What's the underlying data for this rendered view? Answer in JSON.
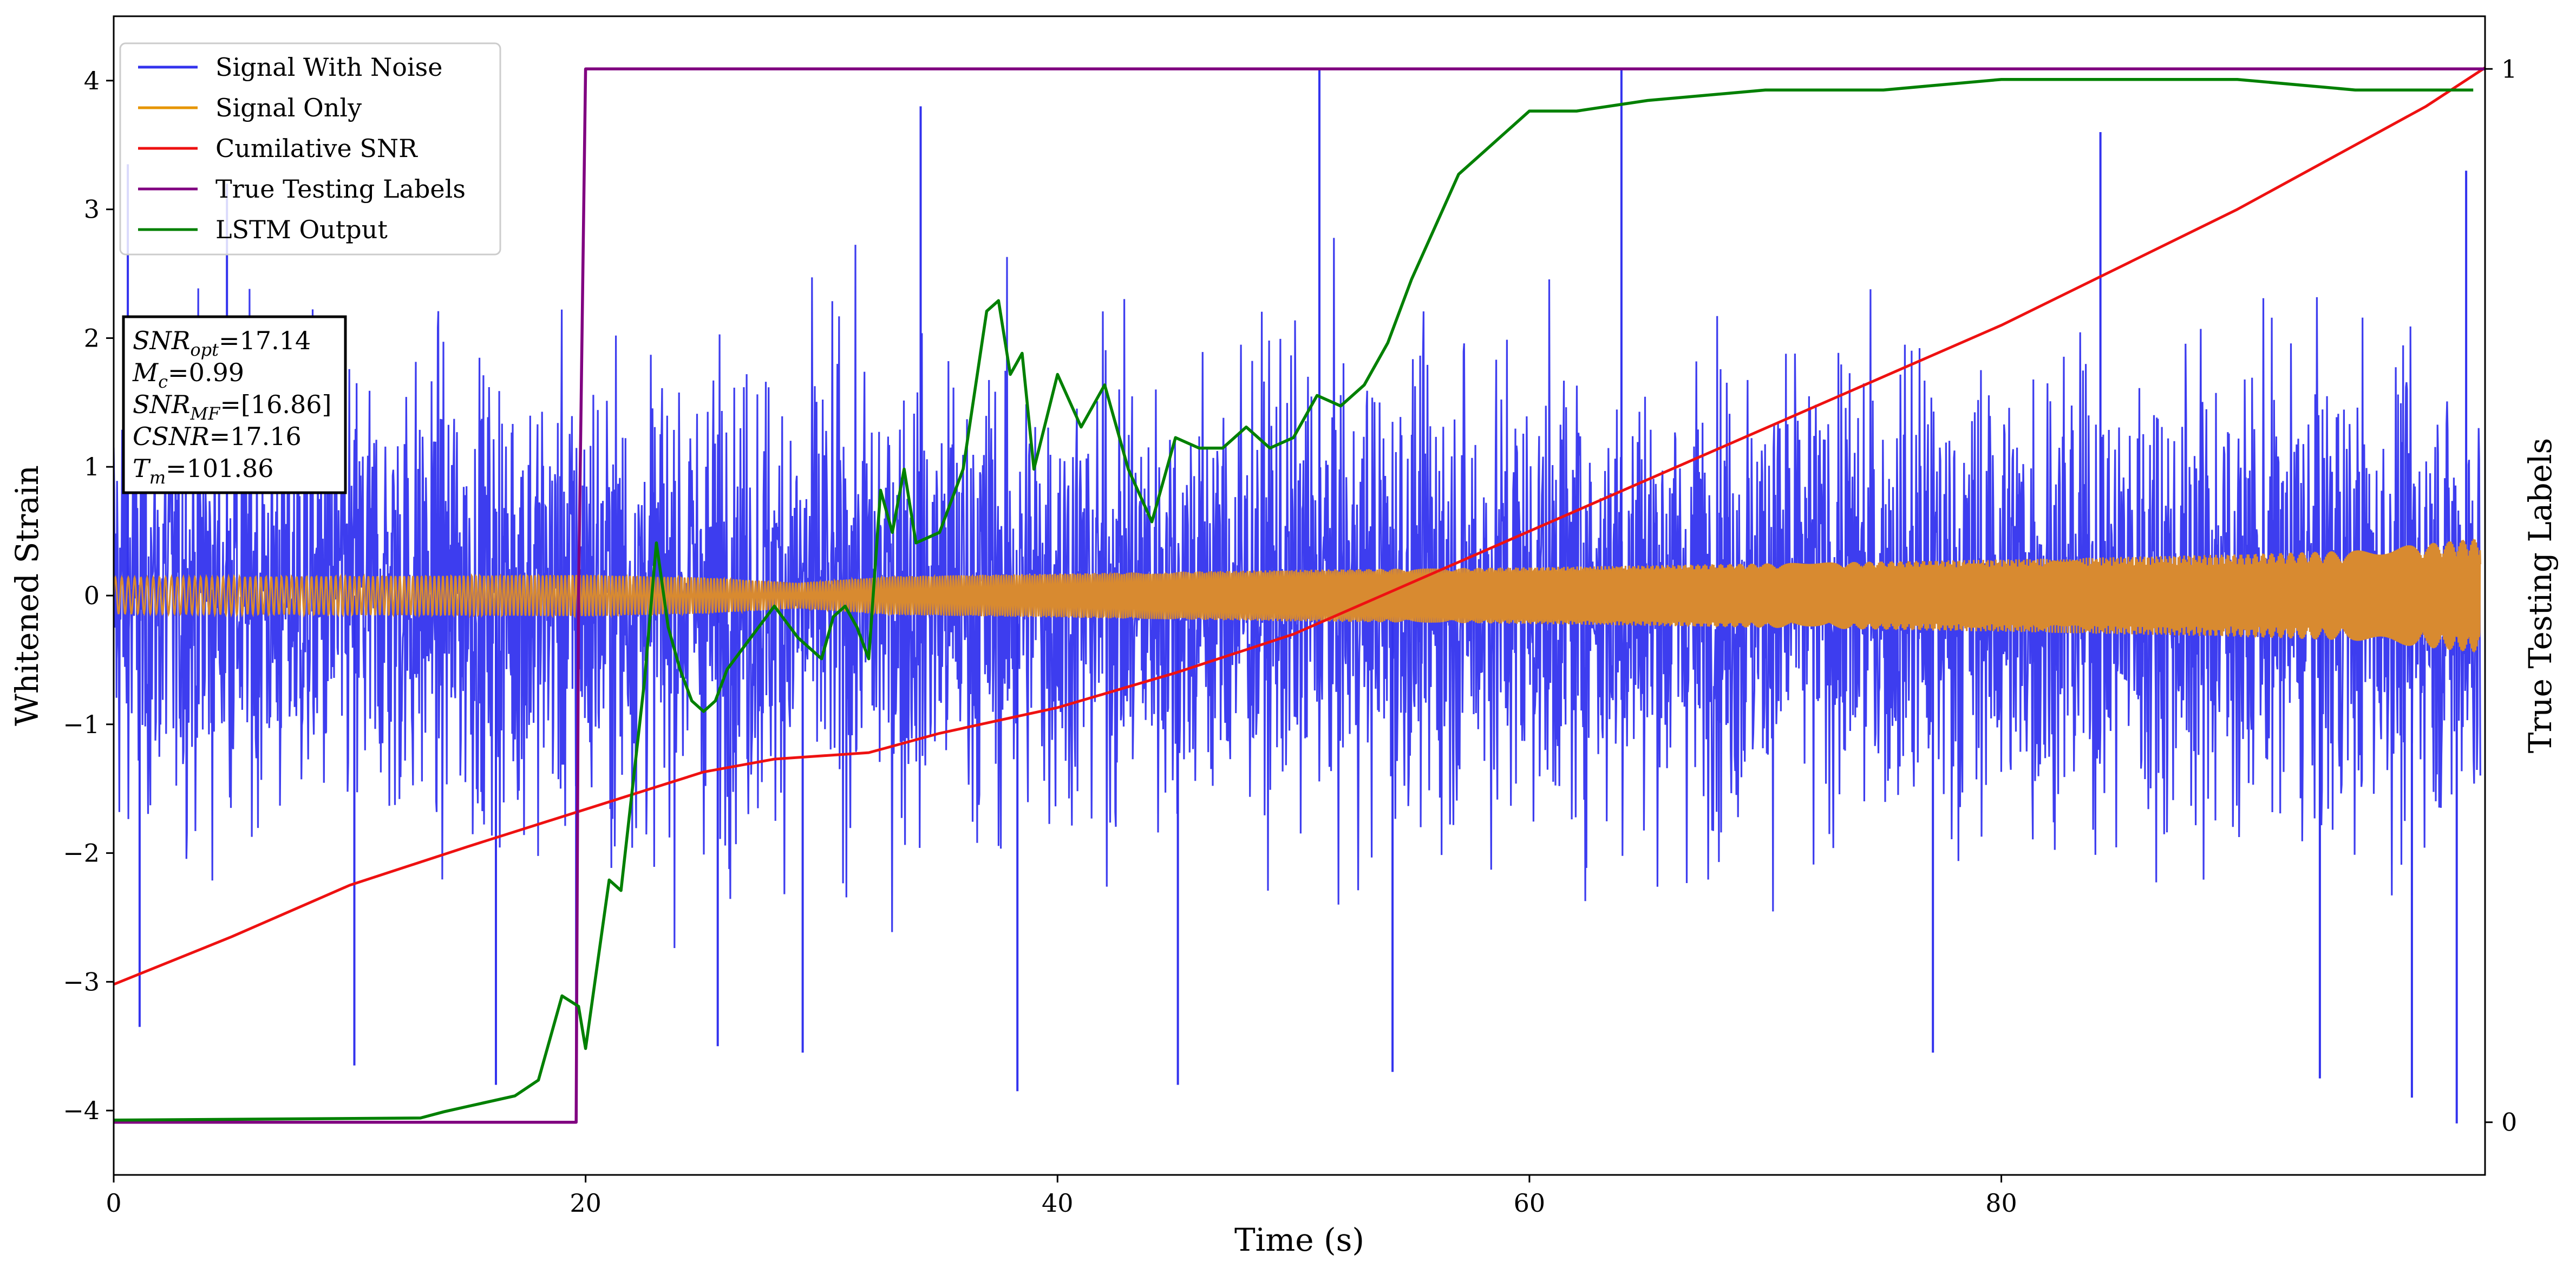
{
  "chart_data": {
    "type": "line",
    "xlabel": "Time (s)",
    "ylabel": "Whitened Strain",
    "y2label": "True Testing Labels",
    "xlim": [
      0,
      100.5
    ],
    "ylim": [
      -4.5,
      4.5
    ],
    "y2lim": [
      -0.05,
      1.05
    ],
    "x_ticks": [
      0,
      20,
      40,
      60,
      80
    ],
    "y_ticks": [
      -4,
      -3,
      -2,
      -1,
      0,
      1,
      2,
      3,
      4
    ],
    "y2_ticks": [
      0,
      1
    ],
    "legend_position": "top-left",
    "series": [
      {
        "name": "Signal With Noise",
        "color": "#3333ee",
        "axis": "left",
        "kind": "noise",
        "approx_stats": {
          "std": 1.2,
          "min": -4.1,
          "max": 4.1
        },
        "notable_spikes": [
          {
            "x": 0.6,
            "y": 3.35
          },
          {
            "x": 1.1,
            "y": -3.35
          },
          {
            "x": 4.8,
            "y": 3.2
          },
          {
            "x": 10.2,
            "y": -3.65
          },
          {
            "x": 16.2,
            "y": -3.8
          },
          {
            "x": 19.6,
            "y": -3.6
          },
          {
            "x": 25.6,
            "y": -3.5
          },
          {
            "x": 29.2,
            "y": -3.55
          },
          {
            "x": 34.2,
            "y": 3.8
          },
          {
            "x": 38.3,
            "y": -3.85
          },
          {
            "x": 45.1,
            "y": -3.8
          },
          {
            "x": 51.1,
            "y": 4.1
          },
          {
            "x": 54.2,
            "y": -3.7
          },
          {
            "x": 63.9,
            "y": 4.1
          },
          {
            "x": 77.1,
            "y": -3.55
          },
          {
            "x": 84.2,
            "y": 3.6
          },
          {
            "x": 93.5,
            "y": -3.75
          },
          {
            "x": 97.4,
            "y": -3.9
          },
          {
            "x": 99.3,
            "y": -4.1
          },
          {
            "x": 99.7,
            "y": 3.3
          }
        ]
      },
      {
        "name": "Signal Only",
        "color": "#e69500",
        "axis": "left",
        "kind": "envelope",
        "envelope_x": [
          0,
          20,
          25,
          29,
          33,
          40,
          50,
          60,
          70,
          80,
          90,
          95,
          100
        ],
        "envelope_amp": [
          0.14,
          0.16,
          0.14,
          0.1,
          0.15,
          0.17,
          0.2,
          0.22,
          0.25,
          0.28,
          0.32,
          0.35,
          0.44
        ]
      },
      {
        "name": "Cumilative SNR",
        "color": "#ee1111",
        "axis": "left",
        "kind": "line",
        "x": [
          0,
          5,
          10,
          15,
          20,
          25,
          28,
          32,
          35,
          40,
          45,
          50,
          55,
          60,
          65,
          70,
          75,
          80,
          85,
          90,
          95,
          98,
          100.5
        ],
        "y": [
          -3.02,
          -2.65,
          -2.25,
          -1.95,
          -1.66,
          -1.37,
          -1.27,
          -1.22,
          -1.07,
          -0.87,
          -0.6,
          -0.3,
          0.1,
          0.5,
          0.9,
          1.3,
          1.7,
          2.1,
          2.55,
          3.0,
          3.5,
          3.8,
          4.1
        ]
      },
      {
        "name": "True Testing Labels",
        "color": "#800080",
        "axis": "right",
        "kind": "line",
        "x": [
          0,
          19.6,
          19.7,
          20.0,
          100.5
        ],
        "y": [
          0,
          0,
          0.5,
          1,
          1
        ]
      },
      {
        "name": "LSTM Output",
        "color": "#008000",
        "axis": "right",
        "kind": "line",
        "x": [
          0,
          13,
          14,
          15,
          16,
          17,
          18,
          19,
          19.7,
          20,
          20.5,
          21,
          21.5,
          22,
          22.5,
          23,
          23.5,
          24,
          24.5,
          25,
          25.5,
          26,
          27,
          28,
          29,
          30,
          30.5,
          31,
          31.5,
          32,
          32.5,
          33,
          33.5,
          34,
          35,
          36,
          37,
          37.5,
          38,
          38.5,
          39,
          40,
          41,
          42,
          43,
          44,
          45,
          46,
          47,
          48,
          49,
          50,
          51,
          52,
          53,
          54,
          55,
          56,
          57,
          58,
          59,
          60,
          62,
          65,
          70,
          75,
          80,
          85,
          90,
          95,
          100
        ],
        "y": [
          0.002,
          0.004,
          0.01,
          0.015,
          0.02,
          0.025,
          0.04,
          0.12,
          0.11,
          0.07,
          0.15,
          0.23,
          0.22,
          0.32,
          0.42,
          0.55,
          0.47,
          0.43,
          0.4,
          0.39,
          0.4,
          0.43,
          0.46,
          0.49,
          0.46,
          0.44,
          0.48,
          0.49,
          0.47,
          0.44,
          0.6,
          0.56,
          0.62,
          0.55,
          0.56,
          0.62,
          0.77,
          0.78,
          0.71,
          0.73,
          0.62,
          0.71,
          0.66,
          0.7,
          0.62,
          0.57,
          0.65,
          0.64,
          0.64,
          0.66,
          0.64,
          0.65,
          0.69,
          0.68,
          0.7,
          0.74,
          0.8,
          0.85,
          0.9,
          0.92,
          0.94,
          0.96,
          0.96,
          0.97,
          0.98,
          0.98,
          0.99,
          0.99,
          0.99,
          0.98,
          0.98
        ]
      }
    ],
    "legend": [
      "Signal With Noise",
      "Signal Only",
      "Cumilative SNR",
      "True Testing Labels",
      "LSTM Output"
    ],
    "annotation_box": [
      {
        "base": "SNR",
        "sub": "opt",
        "value": "=17.14"
      },
      {
        "base": "M",
        "sub": "c",
        "value": "=0.99"
      },
      {
        "base": "SNR",
        "sub": "MF",
        "value": "=[16.86]"
      },
      {
        "base": "CSNR",
        "sub": "",
        "value": "=17.16"
      },
      {
        "base": "T",
        "sub": "m",
        "value": "=101.86"
      }
    ]
  }
}
